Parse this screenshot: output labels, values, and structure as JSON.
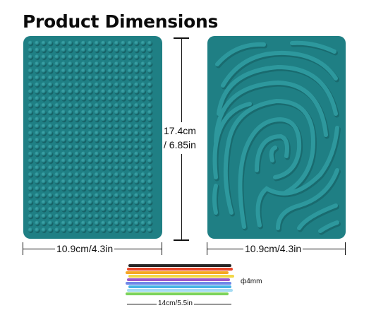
{
  "title": "Product Dimensions",
  "dimensions": {
    "height_line1": "17.4cm",
    "height_line2": "/ 6.85in",
    "width_left": "10.9cm/4.3in",
    "width_right": "10.9cm/4.3in",
    "cord_diameter": "ф4mm",
    "cord_length": "14cm/5.5in"
  },
  "colors": {
    "mat": "#1f7f84",
    "cords": [
      "#262626",
      "#e8452a",
      "#f5a623",
      "#f2d848",
      "#a056c7",
      "#6f88e8",
      "#46b3e6",
      "#a6dcf3",
      "#7bd35a"
    ]
  }
}
